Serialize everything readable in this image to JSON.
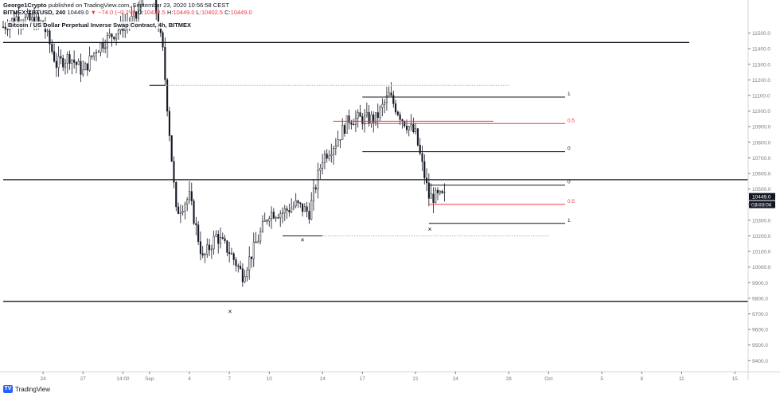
{
  "header": {
    "author": "George1Crypto",
    "published": "published on TradingView.com, September 23, 2020 10:56:58 CEST",
    "symbol": "BITMEX:XBTUSD, 240",
    "last": "10449.0",
    "change": "▼ −74.0 (−0.7%)",
    "o_label": "O:",
    "o": "10422.5",
    "h_label": "H:",
    "h": "10449.0",
    "l_label": "L:",
    "l": "10402.5",
    "c_label": "C:",
    "c": "10449.0"
  },
  "legend": "Bitcoin / US Dollar Perpetual Inverse Swap Contract, 4h, BITMEX",
  "brand": "TradingView",
  "colors": {
    "up": "#131722",
    "down": "#131722",
    "axis": "#787b86",
    "fib_mid": "#f23645",
    "price_tag": "#131722",
    "grid_dots": "#b2b5be"
  },
  "chart_data": {
    "type": "candlestick",
    "symbol": "BITMEX:XBTUSD",
    "interval": "240",
    "y_ticks": [
      "11500.0",
      "11400.0",
      "11300.0",
      "11200.0",
      "11100.0",
      "11000.0",
      "10900.0",
      "10800.0",
      "10700.0",
      "10600.0",
      "10500.0",
      "10400.0",
      "10300.0",
      "10200.0",
      "10100.0",
      "10000.0",
      "9900.0",
      "9800.0",
      "9700.0",
      "9600.0",
      "9500.0",
      "9400.0"
    ],
    "y_tick_values": [
      11500,
      11400,
      11300,
      11200,
      11100,
      11000,
      10900,
      10800,
      10700,
      10600,
      10500,
      10400,
      10300,
      10200,
      10100,
      10000,
      9900,
      9800,
      9700,
      9600,
      9500,
      9400
    ],
    "ylim": [
      9330,
      11600
    ],
    "x_ticks": [
      "24",
      "27",
      "14:00",
      "Sep",
      "4",
      "7",
      "10",
      "14",
      "17",
      "21",
      "24",
      "28",
      "Oct",
      "5",
      "8",
      "11",
      "15"
    ],
    "last_price": "10449.0",
    "countdown": "03:03:04",
    "horizontal_lines": [
      11440,
      10560,
      9780
    ],
    "dotted_lines": [
      {
        "from": "Sep 1",
        "to": "Sep 28",
        "y": 11165
      },
      {
        "from": "Sep 11",
        "to": "Oct 1",
        "y": 10200
      }
    ],
    "fib_sets": [
      {
        "levels": [
          {
            "label": "1",
            "y": 11090
          },
          {
            "label": "0.5",
            "y": 10920
          },
          {
            "label": "0",
            "y": 10740
          }
        ]
      },
      {
        "levels": [
          {
            "label": "0",
            "y": 10525
          },
          {
            "label": "0.5",
            "y": 10402
          },
          {
            "label": "1",
            "y": 10280
          }
        ]
      }
    ],
    "x_markers": [
      {
        "label": "×",
        "near": "Sep 7",
        "y": 9715
      },
      {
        "label": "×",
        "near": "Sep 12",
        "y": 10175
      },
      {
        "label": "×",
        "near": "Sep 22",
        "y": 10242
      }
    ],
    "pivot_segments": [
      {
        "name": "range-top",
        "from_x": "Sep 1",
        "y": 11165
      },
      {
        "name": "range-bottom",
        "from_x": "Sep 11",
        "y": 10200
      }
    ],
    "price_path": [
      {
        "t": "Aug 21",
        "v": 11540
      },
      {
        "t": "Aug 22",
        "v": 11600
      },
      {
        "t": "Aug 24",
        "v": 11560
      },
      {
        "t": "Aug 25",
        "v": 11300
      },
      {
        "t": "Aug 26",
        "v": 11350
      },
      {
        "t": "Aug 27",
        "v": 11250
      },
      {
        "t": "Aug 28",
        "v": 11400
      },
      {
        "t": "Aug 30",
        "v": 11550
      },
      {
        "t": "Aug 31",
        "v": 11600
      },
      {
        "t": "Sep 1",
        "v": 11900
      },
      {
        "t": "Sep 2",
        "v": 11380
      },
      {
        "t": "Sep 3",
        "v": 10350
      },
      {
        "t": "Sep 4",
        "v": 10450
      },
      {
        "t": "Sep 5",
        "v": 10050
      },
      {
        "t": "Sep 6",
        "v": 10200
      },
      {
        "t": "Sep 7",
        "v": 10100
      },
      {
        "t": "Sep 8",
        "v": 9950
      },
      {
        "t": "Sep 9",
        "v": 10150
      },
      {
        "t": "Sep 10",
        "v": 10350
      },
      {
        "t": "Sep 11",
        "v": 10350
      },
      {
        "t": "Sep 12",
        "v": 10400
      },
      {
        "t": "Sep 13",
        "v": 10350
      },
      {
        "t": "Sep 14",
        "v": 10700
      },
      {
        "t": "Sep 15",
        "v": 10800
      },
      {
        "t": "Sep 16",
        "v": 10950
      },
      {
        "t": "Sep 17",
        "v": 10950
      },
      {
        "t": "Sep 18",
        "v": 10950
      },
      {
        "t": "Sep 19",
        "v": 11100
      },
      {
        "t": "Sep 20",
        "v": 10950
      },
      {
        "t": "Sep 21",
        "v": 10850
      },
      {
        "t": "Sep 22",
        "v": 10450
      },
      {
        "t": "Sep 23",
        "v": 10449
      }
    ]
  }
}
